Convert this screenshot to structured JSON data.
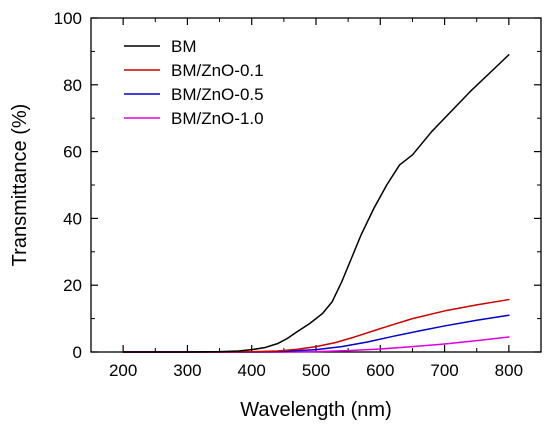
{
  "chart_data": {
    "type": "line",
    "title": "",
    "xlabel": "Wavelength (nm)",
    "ylabel": "Transmittance (%)",
    "xlim": [
      150,
      850
    ],
    "ylim": [
      0,
      100
    ],
    "xticks": [
      200,
      300,
      400,
      500,
      600,
      700,
      800
    ],
    "yticks": [
      0,
      20,
      40,
      60,
      80,
      100
    ],
    "grid": false,
    "legend_position": "top-left",
    "series": [
      {
        "name": "BM",
        "color": "#000000",
        "x": [
          200,
          300,
          350,
          380,
          400,
          420,
          440,
          455,
          470,
          490,
          510,
          525,
          540,
          555,
          570,
          590,
          610,
          630,
          650,
          680,
          710,
          740,
          770,
          800
        ],
        "y": [
          0,
          0,
          0.1,
          0.3,
          0.7,
          1.3,
          2.5,
          4,
          6,
          8.5,
          11.5,
          15,
          21,
          28,
          35,
          43,
          50,
          56,
          59,
          66,
          72,
          78,
          83.5,
          89
        ]
      },
      {
        "name": "BM/ZnO-0.1",
        "color": "#cc0000",
        "x": [
          200,
          350,
          400,
          440,
          470,
          500,
          530,
          560,
          600,
          650,
          700,
          750,
          800
        ],
        "y": [
          0,
          0,
          0.1,
          0.3,
          0.8,
          1.6,
          2.8,
          4.5,
          7,
          10,
          12.3,
          14.1,
          15.7
        ]
      },
      {
        "name": "BM/ZnO-0.5",
        "color": "#0000cc",
        "x": [
          200,
          400,
          450,
          500,
          540,
          580,
          620,
          660,
          700,
          750,
          800
        ],
        "y": [
          0,
          0,
          0.2,
          0.7,
          1.6,
          3,
          4.7,
          6.3,
          7.8,
          9.5,
          11
        ]
      },
      {
        "name": "BM/ZnO-1.0",
        "color": "#dd00dd",
        "x": [
          200,
          450,
          500,
          550,
          600,
          650,
          700,
          750,
          800
        ],
        "y": [
          0,
          0,
          0.1,
          0.4,
          0.9,
          1.6,
          2.4,
          3.4,
          4.5
        ]
      }
    ]
  }
}
